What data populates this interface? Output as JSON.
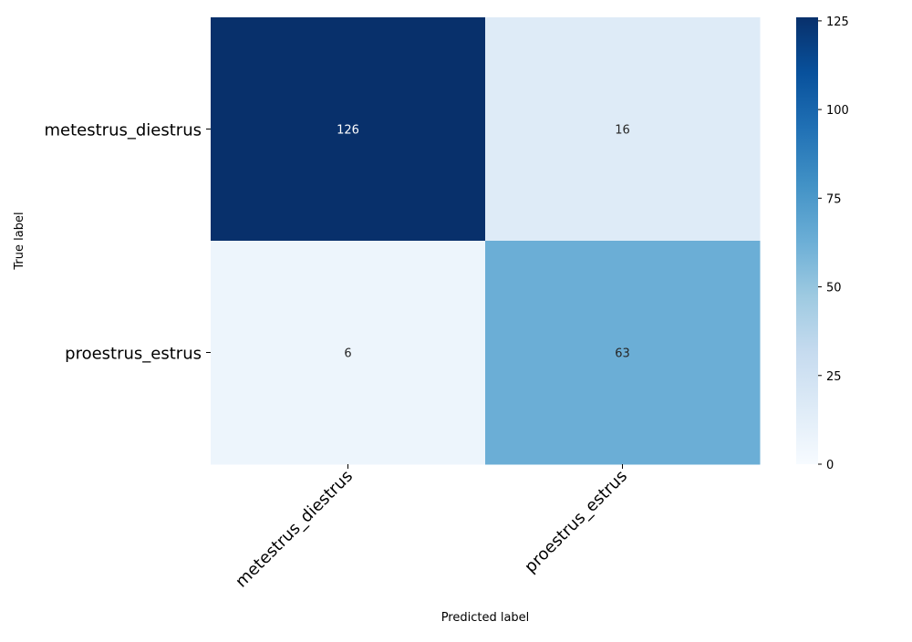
{
  "chart_data": {
    "type": "heatmap",
    "title": "",
    "xlabel": "Predicted label",
    "ylabel": "True label",
    "x_categories": [
      "metestrus_diestrus",
      "proestrus_estrus"
    ],
    "y_categories": [
      "metestrus_diestrus",
      "proestrus_estrus"
    ],
    "values": [
      [
        126,
        16
      ],
      [
        6,
        63
      ]
    ],
    "colormap": "Blues",
    "colorbar": {
      "range": [
        0,
        126
      ],
      "ticks": [
        0,
        25,
        50,
        75,
        100,
        125
      ]
    },
    "grid": false,
    "legend": "colorbar-right"
  }
}
